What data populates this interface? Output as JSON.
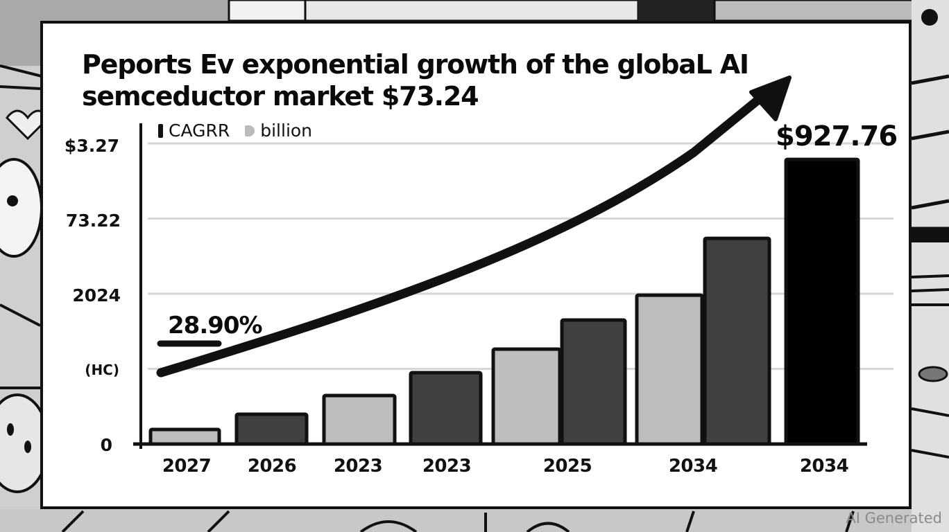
{
  "title": {
    "line1": "Peports Ev exponential growth of  the globaL AI",
    "line2": "semceductor market $73.24"
  },
  "legend": [
    {
      "label": "CAGRR",
      "color": "#111111",
      "icon": "bar-swatch"
    },
    {
      "label": "billion",
      "color": "#bbbbbb",
      "icon": "tag-swatch"
    }
  ],
  "annotations": {
    "cagr_label": "28.90%",
    "top_value_label": "$927.76"
  },
  "watermark": "AI Generated",
  "colors": {
    "light_bar": "#bdbdbd",
    "dark_bar": "#404040",
    "peak_bar": "#000000",
    "outline": "#111111",
    "gridline": "#d6d6d6"
  },
  "chart_data": {
    "type": "bar",
    "title": "Peports Ev exponential growth of  the globaL AI semceductor market $73.24",
    "xlabel": "",
    "ylabel": "",
    "categories": [
      "2027",
      "2026",
      "2023",
      "2023",
      "2025",
      "",
      "2034",
      "",
      "2034"
    ],
    "x_tick_labels": [
      "2027",
      "2026",
      "2023",
      "2023",
      "2025",
      "2034",
      "2034"
    ],
    "y_tick_labels": [
      "0",
      "(HC)",
      "2024",
      "73.22",
      "$3.27"
    ],
    "series": [
      {
        "name": "billion",
        "values": [
          47.4,
          97.1,
          158.0,
          232.5,
          309.3,
          404.1,
          485.3,
          670.4,
          927.76
        ],
        "shades": [
          "light",
          "dark",
          "light",
          "dark",
          "light",
          "dark",
          "light",
          "dark",
          "peak"
        ]
      }
    ],
    "trend_arrow": {
      "label": "CAGRR",
      "rate": "28.90%",
      "shape": "exponential"
    },
    "ylim": [
      0,
      980
    ],
    "grid": true,
    "legend_position": "top-left"
  }
}
